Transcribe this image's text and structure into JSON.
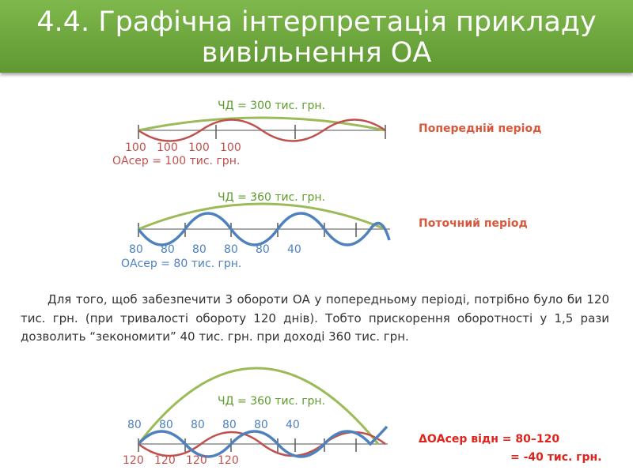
{
  "title": {
    "line1": "4.4. Графічна інтерпретація прикладу",
    "line2": "вивільнення ОА"
  },
  "colors": {
    "header": "#6aa63a",
    "green": "#9bbb59",
    "red": "#c0504d",
    "blue": "#4f81bd"
  },
  "diagram1": {
    "chd": "ЧД = 300 тис. грн.",
    "values": [
      "100",
      "100",
      "100",
      "100"
    ],
    "oa": "ОАсер = 100 тис. грн.",
    "period": "Попередній період"
  },
  "diagram2": {
    "chd": "ЧД = 360 тис. грн.",
    "values": [
      "80",
      "80",
      "80",
      "80",
      "80",
      "40"
    ],
    "oa": "ОАсер = 80 тис. грн.",
    "period": "Поточний період"
  },
  "paragraph": "Для того, щоб забезпечити 3 обороти ОА у попередньому періоді, потрібно було би 120 тис. грн. (при тривалості обороту 120 днів). Тобто прискорення оборотності у 1,5 рази дозволить “зекономити” 40 тис. грн. при доході 360 тис. грн.",
  "diagram3": {
    "chd": "ЧД = 360 тис. грн.",
    "blue_values": [
      "80",
      "80",
      "80",
      "80",
      "80",
      "40"
    ],
    "red_values": [
      "120",
      "120",
      "120",
      "120"
    ],
    "delta_line1": "ΔОАсер відн = 80–120",
    "delta_line2": "= -40 тис. грн."
  }
}
